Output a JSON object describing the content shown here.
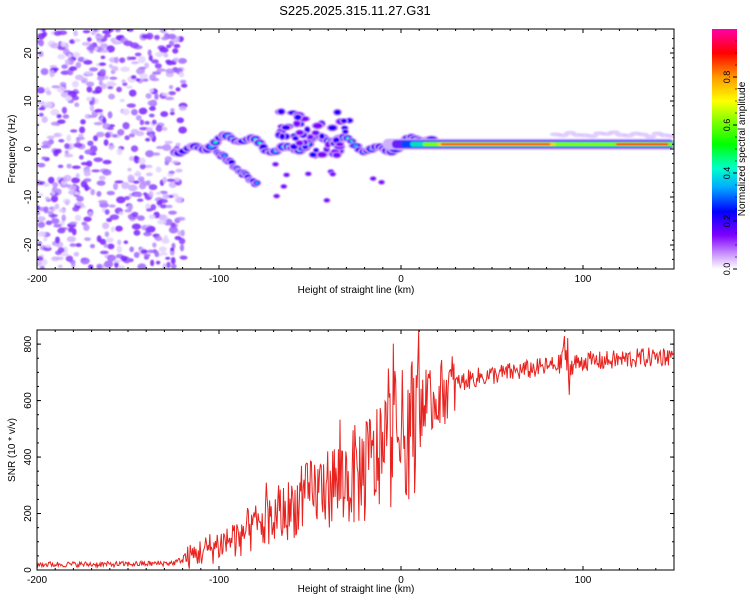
{
  "title": "S225.2025.315.11.27.G31",
  "chart_data": [
    {
      "type": "heatmap",
      "name": "spectrogram",
      "xlabel": "Height of straight line (km)",
      "ylabel": "Frequency (Hz)",
      "xlim": [
        -200,
        150
      ],
      "ylim": [
        -25,
        25
      ],
      "xticks": [
        -200,
        -100,
        0,
        100
      ],
      "yticks": [
        -20,
        -10,
        0,
        10,
        20
      ],
      "colorbar": {
        "label": "Normalized spectral amplitude",
        "range": [
          0,
          1
        ],
        "ticks": [
          "0.0",
          "0.2",
          "0.4",
          "0.6",
          "0.8"
        ]
      },
      "features": [
        {
          "region": "noise",
          "x_range": [
            -200,
            -123
          ],
          "freq_range": [
            -25,
            25
          ],
          "amplitude": 0.05
        },
        {
          "region": "onset",
          "x_range": [
            -123,
            -15
          ],
          "freq_center": 0,
          "amplitude": 0.25
        },
        {
          "region": "oblique streak",
          "x_range": [
            -100,
            -80
          ],
          "freq_range": [
            -7,
            2
          ],
          "amplitude": 0.2
        },
        {
          "region": "burst",
          "x_range": [
            -65,
            -30
          ],
          "freq_range": [
            -2,
            8
          ],
          "amplitude": 0.15
        },
        {
          "region": "steady tone",
          "x_range": [
            20,
            150
          ],
          "freq_center": 1,
          "amplitude": 0.95
        }
      ]
    },
    {
      "type": "line",
      "name": "snr",
      "xlabel": "Height of straight line (km)",
      "ylabel": "SNR (10 * v/v)",
      "xlim": [
        -200,
        150
      ],
      "ylim": [
        0,
        850
      ],
      "xticks": [
        -200,
        -100,
        0,
        100
      ],
      "yticks": [
        0,
        200,
        400,
        600,
        800
      ],
      "color": "#e8221e",
      "series": [
        {
          "name": "SNR",
          "x": [
            -200,
            -180,
            -160,
            -140,
            -125,
            -115,
            -100,
            -90,
            -80,
            -70,
            -60,
            -50,
            -40,
            -30,
            -20,
            -15,
            -10,
            -5,
            0,
            5,
            10,
            15,
            20,
            25,
            30,
            40,
            50,
            60,
            70,
            80,
            88,
            90,
            92,
            95,
            100,
            110,
            120,
            130,
            140,
            150
          ],
          "values": [
            20,
            20,
            20,
            22,
            25,
            50,
            90,
            120,
            150,
            180,
            220,
            270,
            300,
            320,
            350,
            380,
            420,
            450,
            470,
            500,
            550,
            580,
            620,
            640,
            660,
            680,
            690,
            700,
            710,
            720,
            730,
            840,
            620,
            730,
            740,
            740,
            745,
            750,
            755,
            760
          ]
        }
      ]
    }
  ]
}
